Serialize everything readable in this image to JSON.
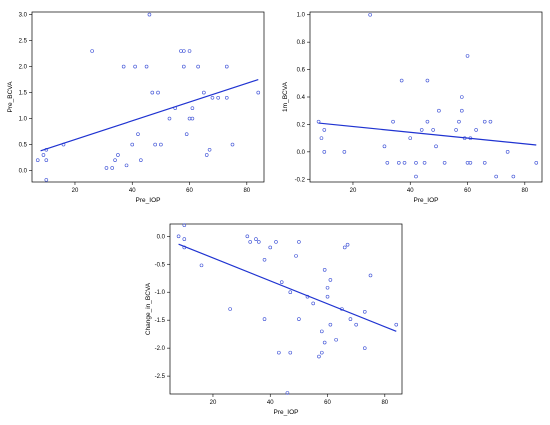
{
  "chart_data": [
    {
      "type": "scatter",
      "xlabel": "Pre_IOP",
      "ylabel": "Pre_BCVA",
      "xlim": [
        5,
        86
      ],
      "ylim": [
        -0.22,
        3.05
      ],
      "xticks": [
        20,
        40,
        60,
        80
      ],
      "yticks": [
        0.0,
        0.5,
        1.0,
        1.5,
        2.0,
        2.5,
        3.0
      ],
      "ytick_format": 1,
      "trendline": {
        "x": [
          8,
          84
        ],
        "y": [
          0.38,
          1.75
        ]
      },
      "points": [
        {
          "x": 7,
          "y": 0.2
        },
        {
          "x": 9,
          "y": 0.3
        },
        {
          "x": 10,
          "y": 0.2
        },
        {
          "x": 10,
          "y": 0.4
        },
        {
          "x": 10,
          "y": -0.18
        },
        {
          "x": 16,
          "y": 0.5
        },
        {
          "x": 26,
          "y": 2.3
        },
        {
          "x": 31,
          "y": 0.05
        },
        {
          "x": 33,
          "y": 0.05
        },
        {
          "x": 34,
          "y": 0.2
        },
        {
          "x": 35,
          "y": 0.3
        },
        {
          "x": 37,
          "y": 2.0
        },
        {
          "x": 38,
          "y": 0.1
        },
        {
          "x": 40,
          "y": 0.5
        },
        {
          "x": 41,
          "y": 2.0
        },
        {
          "x": 42,
          "y": 0.7
        },
        {
          "x": 43,
          "y": 0.2
        },
        {
          "x": 45,
          "y": 2.0
        },
        {
          "x": 46,
          "y": 3.0
        },
        {
          "x": 47,
          "y": 1.5
        },
        {
          "x": 48,
          "y": 0.5
        },
        {
          "x": 49,
          "y": 1.5
        },
        {
          "x": 50,
          "y": 0.5
        },
        {
          "x": 53,
          "y": 1.0
        },
        {
          "x": 55,
          "y": 1.2
        },
        {
          "x": 57,
          "y": 2.3
        },
        {
          "x": 58,
          "y": 2.0
        },
        {
          "x": 58,
          "y": 2.3
        },
        {
          "x": 59,
          "y": 0.7
        },
        {
          "x": 60,
          "y": 2.3
        },
        {
          "x": 60,
          "y": 1.0
        },
        {
          "x": 61,
          "y": 1.2
        },
        {
          "x": 61,
          "y": 1.0
        },
        {
          "x": 63,
          "y": 2.0
        },
        {
          "x": 65,
          "y": 1.5
        },
        {
          "x": 66,
          "y": 0.3
        },
        {
          "x": 67,
          "y": 0.4
        },
        {
          "x": 68,
          "y": 1.4
        },
        {
          "x": 70,
          "y": 1.4
        },
        {
          "x": 73,
          "y": 1.4
        },
        {
          "x": 73,
          "y": 2.0
        },
        {
          "x": 75,
          "y": 0.5
        },
        {
          "x": 84,
          "y": 1.5
        }
      ]
    },
    {
      "type": "scatter",
      "xlabel": "Pre_IOP",
      "ylabel": "1m_BCVA",
      "xlim": [
        5,
        86
      ],
      "ylim": [
        -0.22,
        1.02
      ],
      "xticks": [
        20,
        40,
        60,
        80
      ],
      "yticks": [
        -0.2,
        0.0,
        0.2,
        0.4,
        0.6,
        0.8,
        1.0
      ],
      "ytick_format": 1,
      "trendline": {
        "x": [
          8,
          84
        ],
        "y": [
          0.21,
          0.05
        ]
      },
      "points": [
        {
          "x": 8,
          "y": 0.22
        },
        {
          "x": 9,
          "y": 0.1
        },
        {
          "x": 10,
          "y": 0.16
        },
        {
          "x": 10,
          "y": 0.0
        },
        {
          "x": 17,
          "y": 0.0
        },
        {
          "x": 26,
          "y": 1.0
        },
        {
          "x": 31,
          "y": 0.04
        },
        {
          "x": 32,
          "y": -0.08
        },
        {
          "x": 34,
          "y": 0.22
        },
        {
          "x": 36,
          "y": -0.08
        },
        {
          "x": 37,
          "y": 0.52
        },
        {
          "x": 38,
          "y": -0.08
        },
        {
          "x": 40,
          "y": 0.1
        },
        {
          "x": 42,
          "y": -0.08
        },
        {
          "x": 42,
          "y": -0.18
        },
        {
          "x": 44,
          "y": 0.16
        },
        {
          "x": 45,
          "y": -0.08
        },
        {
          "x": 46,
          "y": 0.22
        },
        {
          "x": 46,
          "y": 0.52
        },
        {
          "x": 48,
          "y": 0.16
        },
        {
          "x": 49,
          "y": 0.04
        },
        {
          "x": 50,
          "y": 0.3
        },
        {
          "x": 52,
          "y": -0.08
        },
        {
          "x": 56,
          "y": 0.16
        },
        {
          "x": 57,
          "y": 0.22
        },
        {
          "x": 58,
          "y": 0.3
        },
        {
          "x": 58,
          "y": 0.4
        },
        {
          "x": 59,
          "y": 0.1
        },
        {
          "x": 60,
          "y": -0.08
        },
        {
          "x": 60,
          "y": 0.7
        },
        {
          "x": 61,
          "y": 0.1
        },
        {
          "x": 61,
          "y": -0.08
        },
        {
          "x": 63,
          "y": 0.16
        },
        {
          "x": 66,
          "y": 0.22
        },
        {
          "x": 66,
          "y": -0.08
        },
        {
          "x": 68,
          "y": 0.22
        },
        {
          "x": 70,
          "y": -0.18
        },
        {
          "x": 74,
          "y": 0.0
        },
        {
          "x": 76,
          "y": -0.18
        },
        {
          "x": 84,
          "y": -0.08
        }
      ]
    },
    {
      "type": "scatter",
      "xlabel": "Pre_IOP",
      "ylabel": "Change_in_BCVA",
      "xlim": [
        5,
        86
      ],
      "ylim": [
        -2.82,
        0.22
      ],
      "xticks": [
        20,
        40,
        60,
        80
      ],
      "yticks": [
        -2.5,
        -2.0,
        -1.5,
        -1.0,
        -0.5,
        0.0
      ],
      "ytick_format": 1,
      "trendline": {
        "x": [
          8,
          84
        ],
        "y": [
          -0.14,
          -1.7
        ]
      },
      "points": [
        {
          "x": 8,
          "y": 0.0
        },
        {
          "x": 10,
          "y": -0.2
        },
        {
          "x": 10,
          "y": 0.2
        },
        {
          "x": 10,
          "y": -0.05
        },
        {
          "x": 16,
          "y": -0.52
        },
        {
          "x": 26,
          "y": -1.3
        },
        {
          "x": 32,
          "y": 0.0
        },
        {
          "x": 33,
          "y": -0.1
        },
        {
          "x": 35,
          "y": -0.05
        },
        {
          "x": 36,
          "y": -0.1
        },
        {
          "x": 38,
          "y": -0.42
        },
        {
          "x": 38,
          "y": -1.48
        },
        {
          "x": 40,
          "y": -0.2
        },
        {
          "x": 42,
          "y": -0.1
        },
        {
          "x": 43,
          "y": -2.08
        },
        {
          "x": 44,
          "y": -0.82
        },
        {
          "x": 46,
          "y": -2.8
        },
        {
          "x": 47,
          "y": -2.08
        },
        {
          "x": 47,
          "y": -1.0
        },
        {
          "x": 49,
          "y": -0.35
        },
        {
          "x": 50,
          "y": -1.48
        },
        {
          "x": 50,
          "y": -0.1
        },
        {
          "x": 53,
          "y": -1.08
        },
        {
          "x": 55,
          "y": -1.2
        },
        {
          "x": 57,
          "y": -2.15
        },
        {
          "x": 58,
          "y": -1.7
        },
        {
          "x": 58,
          "y": -2.08
        },
        {
          "x": 59,
          "y": -1.9
        },
        {
          "x": 59,
          "y": -0.6
        },
        {
          "x": 60,
          "y": -1.08
        },
        {
          "x": 60,
          "y": -0.92
        },
        {
          "x": 61,
          "y": -1.58
        },
        {
          "x": 61,
          "y": -0.78
        },
        {
          "x": 63,
          "y": -1.85
        },
        {
          "x": 65,
          "y": -1.3
        },
        {
          "x": 66,
          "y": -0.2
        },
        {
          "x": 67,
          "y": -0.15
        },
        {
          "x": 68,
          "y": -1.48
        },
        {
          "x": 70,
          "y": -1.58
        },
        {
          "x": 73,
          "y": -1.35
        },
        {
          "x": 73,
          "y": -2.0
        },
        {
          "x": 75,
          "y": -0.7
        },
        {
          "x": 84,
          "y": -1.58
        }
      ]
    }
  ]
}
